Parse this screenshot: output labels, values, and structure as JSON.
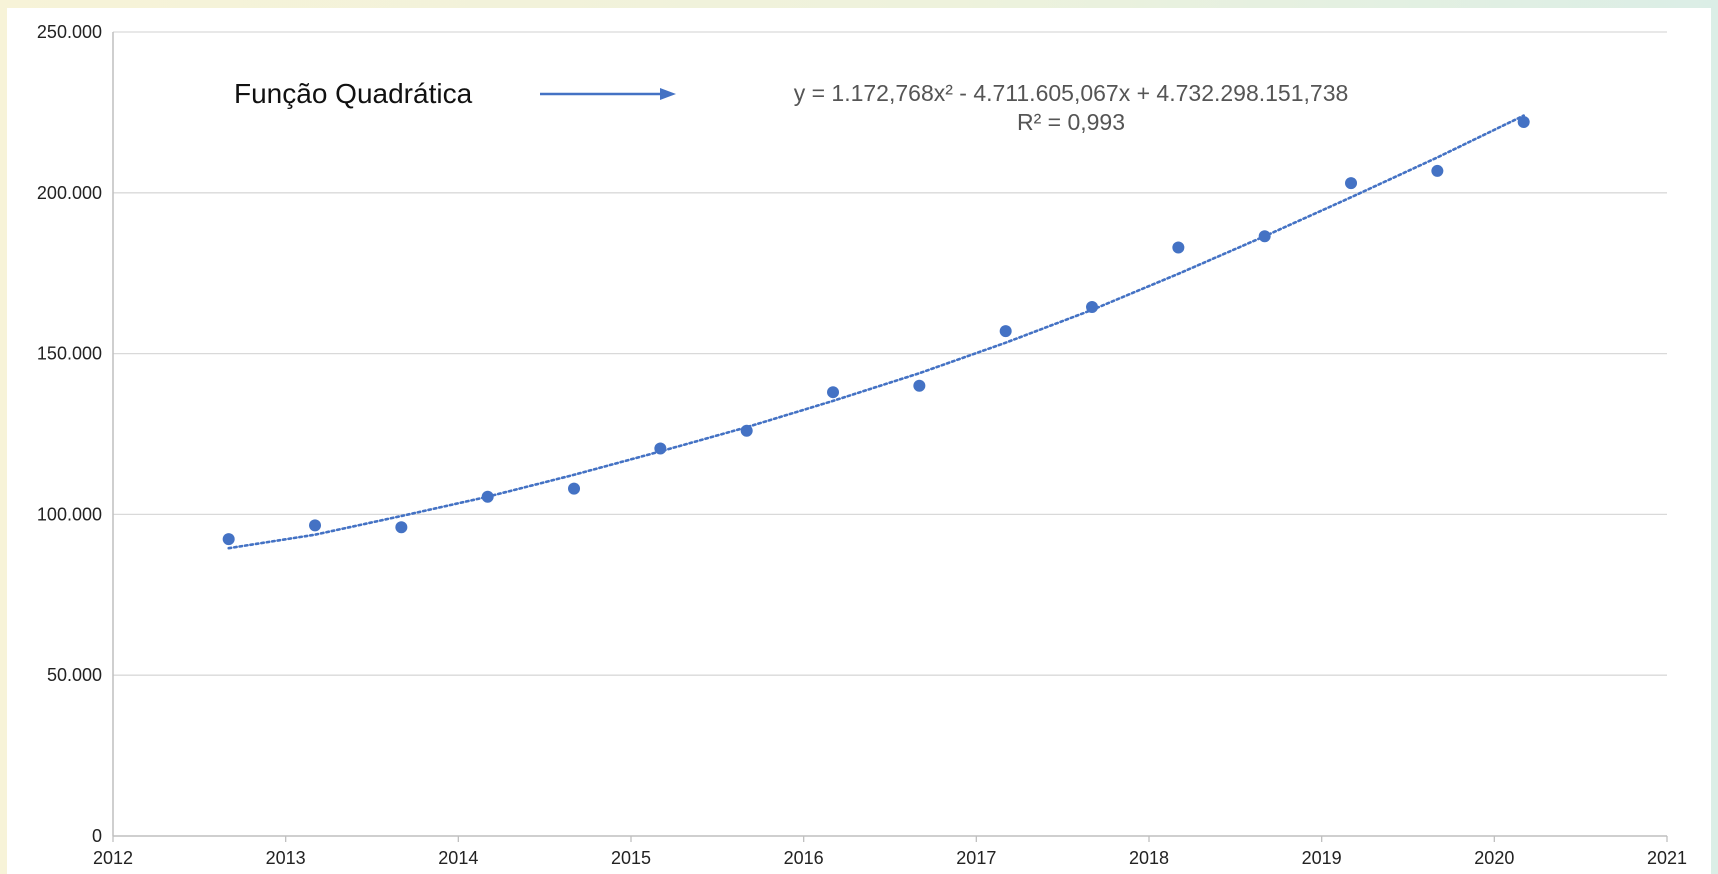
{
  "chart_data": {
    "type": "scatter",
    "xlim": [
      2012,
      2021
    ],
    "ylim": [
      0,
      250000
    ],
    "x_ticks": [
      2012,
      2013,
      2014,
      2015,
      2016,
      2017,
      2018,
      2019,
      2020,
      2021
    ],
    "x_tick_labels": [
      "2012",
      "2013",
      "2014",
      "2015",
      "2016",
      "2017",
      "2018",
      "2019",
      "2020",
      "2021"
    ],
    "y_ticks": [
      0,
      50000,
      100000,
      150000,
      200000,
      250000
    ],
    "y_tick_labels": [
      "0",
      "50.000",
      "100.000",
      "150.000",
      "200.000",
      "250.000"
    ],
    "grid": "horizontal",
    "series": [
      {
        "color": "#4472c4",
        "points": [
          {
            "x": 2012.67,
            "y": 92300
          },
          {
            "x": 2013.17,
            "y": 96600
          },
          {
            "x": 2013.67,
            "y": 96000
          },
          {
            "x": 2014.17,
            "y": 105500
          },
          {
            "x": 2014.67,
            "y": 108000
          },
          {
            "x": 2015.17,
            "y": 120500
          },
          {
            "x": 2015.67,
            "y": 126000
          },
          {
            "x": 2016.17,
            "y": 138000
          },
          {
            "x": 2016.67,
            "y": 140000
          },
          {
            "x": 2017.17,
            "y": 157000
          },
          {
            "x": 2017.67,
            "y": 164500
          },
          {
            "x": 2018.17,
            "y": 183000
          },
          {
            "x": 2018.67,
            "y": 186500
          },
          {
            "x": 2019.17,
            "y": 203000
          },
          {
            "x": 2019.67,
            "y": 206800
          },
          {
            "x": 2020.17,
            "y": 222000
          }
        ]
      }
    ],
    "trendline": {
      "type": "polynomial-2",
      "style": "dotted",
      "color": "#4472c4",
      "points": [
        {
          "x": 2012.67,
          "y": 89500
        },
        {
          "x": 2013.17,
          "y": 93700
        },
        {
          "x": 2013.67,
          "y": 99500
        },
        {
          "x": 2014.17,
          "y": 105500
        },
        {
          "x": 2014.67,
          "y": 112300
        },
        {
          "x": 2015.17,
          "y": 119600
        },
        {
          "x": 2015.67,
          "y": 127100
        },
        {
          "x": 2016.17,
          "y": 135300
        },
        {
          "x": 2016.67,
          "y": 143900
        },
        {
          "x": 2017.17,
          "y": 153400
        },
        {
          "x": 2017.67,
          "y": 163600
        },
        {
          "x": 2018.17,
          "y": 174800
        },
        {
          "x": 2018.67,
          "y": 186500
        },
        {
          "x": 2019.17,
          "y": 198600
        },
        {
          "x": 2019.67,
          "y": 211000
        },
        {
          "x": 2020.17,
          "y": 224000
        }
      ]
    },
    "equation_line1": "y = 1.172,768x² - 4.711.605,067x + 4.732.298.151,738",
    "equation_line2": "R² = 0,993",
    "annotation": "Função Quadrática",
    "annotation_arrow_color": "#4472c4"
  }
}
